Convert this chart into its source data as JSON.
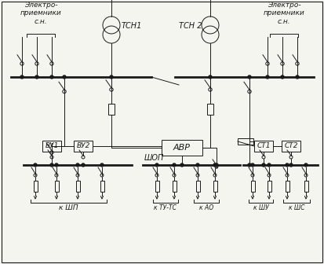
{
  "bg_color": "#f5f5f0",
  "line_color": "#1a1a1a",
  "labels": {
    "elektro_left": "Электро-\nприемники\nс.н.",
    "elektro_right": "Электро-\nприемники\nс.н.",
    "tch1": "ТСН1",
    "tch2": "ТСН 2",
    "vy1": "ВУ1",
    "vy2": "ВУ2",
    "avr": "АВР",
    "shop": "ШОП",
    "ct1": "СТ1",
    "ct2": "СТ2",
    "k_shp": "к ШП",
    "k_tu_tc": "к ТУ-ТС",
    "k_ao": "к АО",
    "k_shu": "к ШУ",
    "k_shc": "к ШС"
  },
  "fig_width": 4.13,
  "fig_height": 3.36,
  "dpi": 100
}
